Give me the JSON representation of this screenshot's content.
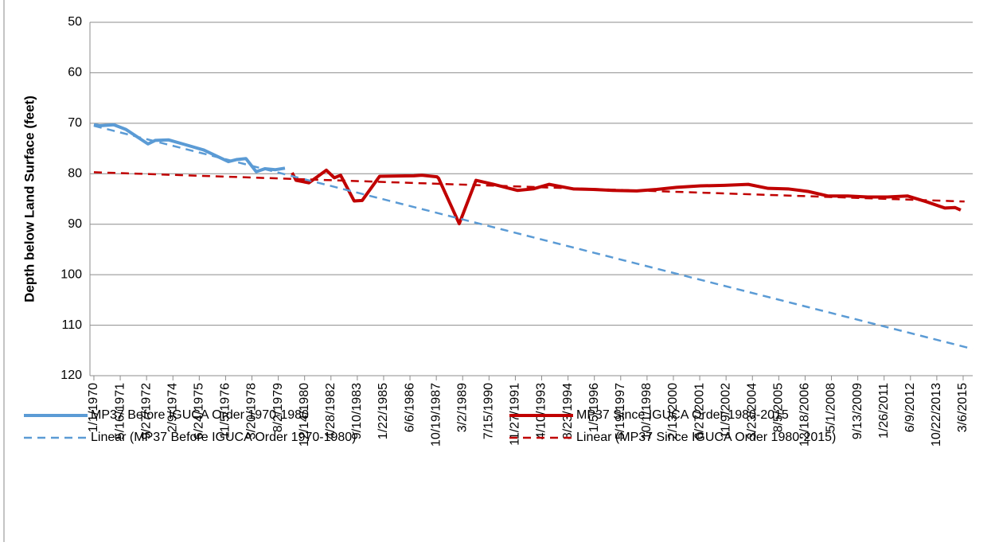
{
  "chart_data": {
    "type": "line",
    "y_label": "Depth below Land Surface (feet)",
    "ylim": [
      120,
      50
    ],
    "yticks": [
      50,
      60,
      70,
      80,
      90,
      100,
      110,
      120
    ],
    "xlim": [
      -75,
      16715
    ],
    "xticks": [
      {
        "value": 0,
        "label": "1/1/1970"
      },
      {
        "value": 501,
        "label": "5/16/1971"
      },
      {
        "value": 1002,
        "label": "9/27/1972"
      },
      {
        "value": 1503,
        "label": "2/9/1974"
      },
      {
        "value": 2004,
        "label": "6/24/1975"
      },
      {
        "value": 2505,
        "label": "11/5/1976"
      },
      {
        "value": 3006,
        "label": "3/20/1978"
      },
      {
        "value": 3507,
        "label": "8/2/1979"
      },
      {
        "value": 4008,
        "label": "12/14/1980"
      },
      {
        "value": 4509,
        "label": "4/28/1982"
      },
      {
        "value": 5010,
        "label": "9/10/1983"
      },
      {
        "value": 5511,
        "label": "1/22/1985"
      },
      {
        "value": 6012,
        "label": "6/6/1986"
      },
      {
        "value": 6513,
        "label": "10/19/1987"
      },
      {
        "value": 7014,
        "label": "3/2/1989"
      },
      {
        "value": 7515,
        "label": "7/15/1990"
      },
      {
        "value": 8016,
        "label": "11/27/1991"
      },
      {
        "value": 8517,
        "label": "4/10/1993"
      },
      {
        "value": 9018,
        "label": "8/23/1994"
      },
      {
        "value": 9519,
        "label": "1/5/1996"
      },
      {
        "value": 10020,
        "label": "5/19/1997"
      },
      {
        "value": 10521,
        "label": "10/1/1998"
      },
      {
        "value": 11022,
        "label": "2/13/2000"
      },
      {
        "value": 11523,
        "label": "6/27/2001"
      },
      {
        "value": 12024,
        "label": "11/9/2002"
      },
      {
        "value": 12525,
        "label": "3/23/2004"
      },
      {
        "value": 13026,
        "label": "8/5/2005"
      },
      {
        "value": 13527,
        "label": "12/18/2006"
      },
      {
        "value": 14028,
        "label": "5/1/2008"
      },
      {
        "value": 14529,
        "label": "9/13/2009"
      },
      {
        "value": 15030,
        "label": "1/26/2011"
      },
      {
        "value": 15531,
        "label": "6/9/2012"
      },
      {
        "value": 16032,
        "label": "10/22/2013"
      },
      {
        "value": 16533,
        "label": "3/6/2015"
      }
    ],
    "grid": true,
    "series": [
      {
        "name": "MP37 Before IGUCA Order 1970-1980",
        "color": "#5b9bd5",
        "dashed": false,
        "x": [
          0,
          106,
          378,
          605,
          1029,
          1165,
          1423,
          1726,
          2089,
          2558,
          2710,
          2892,
          3088,
          3255,
          3452,
          3634
        ],
        "values": [
          70.3,
          70.5,
          70.3,
          71.2,
          74.1,
          73.4,
          73.3,
          74.2,
          75.3,
          77.6,
          77.2,
          77.0,
          79.6,
          79.0,
          79.2,
          78.9
        ]
      },
      {
        "name": "MP37 Since IGUCA Order 1980-2015",
        "color": "#c00000",
        "dashed": false,
        "x": [
          3770,
          3845,
          4088,
          4421,
          4572,
          4693,
          4951,
          5102,
          5435,
          6086,
          6238,
          6525,
          6556,
          6949,
          7267,
          7600,
          8054,
          8357,
          8660,
          9114,
          9493,
          9871,
          10325,
          10704,
          11082,
          11537,
          11991,
          12445,
          12824,
          13202,
          13580,
          13959,
          14338,
          14716,
          15095,
          15473,
          15851,
          16185,
          16381,
          16487
        ],
        "values": [
          79.8,
          81.3,
          81.8,
          79.3,
          80.8,
          80.3,
          85.4,
          85.3,
          80.5,
          80.4,
          80.3,
          80.6,
          80.9,
          89.9,
          81.3,
          82.1,
          83.3,
          83.0,
          82.1,
          83.0,
          83.1,
          83.3,
          83.4,
          83.1,
          82.7,
          82.4,
          82.3,
          82.1,
          82.9,
          83.0,
          83.5,
          84.4,
          84.4,
          84.6,
          84.6,
          84.4,
          85.6,
          86.8,
          86.7,
          87.2
        ]
      },
      {
        "name": "Linear (MP37 Before IGUCA Order 1970-1980)",
        "color": "#5b9bd5",
        "dashed": true,
        "x": [
          0,
          16714
        ],
        "values": [
          70.5,
          114.7
        ]
      },
      {
        "name": "Linear (MP37 Since IGUCA Order 1980-2015)",
        "color": "#c00000",
        "dashed": true,
        "x": [
          0,
          16560
        ],
        "values": [
          79.7,
          85.5
        ]
      }
    ]
  }
}
